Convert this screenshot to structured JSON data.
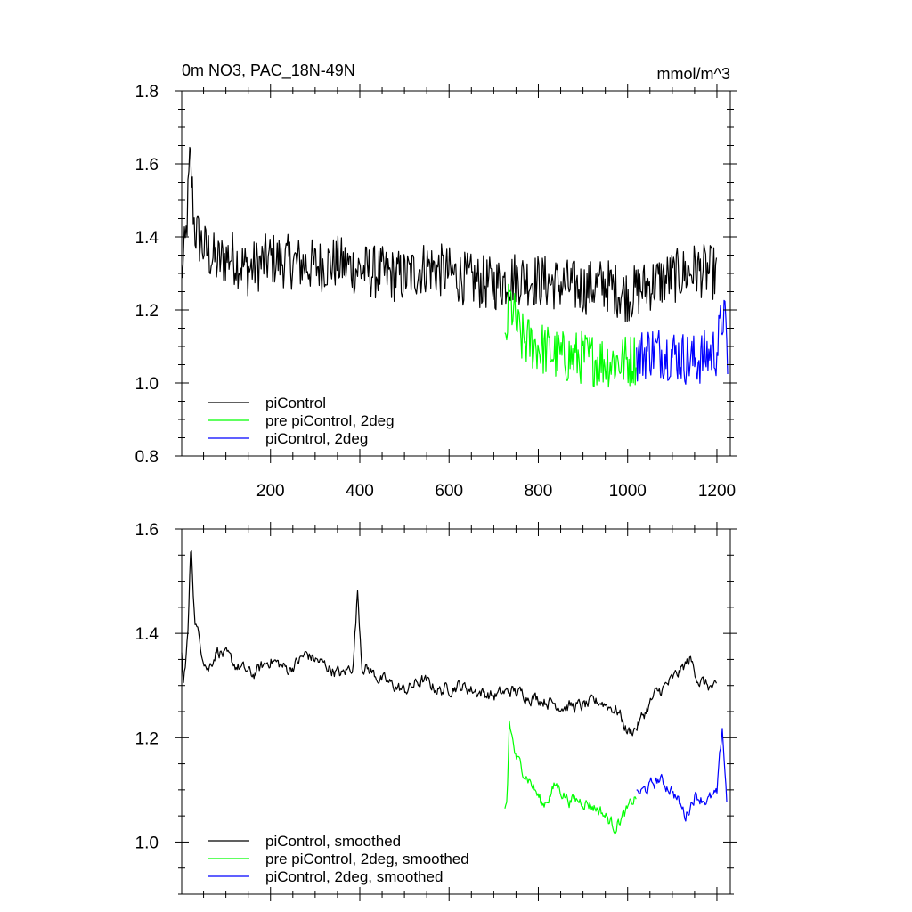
{
  "chart_data": [
    {
      "type": "line",
      "title_left": "0m NO3, PAC_18N-49N",
      "title_right": "mmol/m^3",
      "xlim": [
        1,
        1230
      ],
      "ylim": [
        0.8,
        1.8
      ],
      "xticks": [
        200,
        400,
        600,
        800,
        1000,
        1200
      ],
      "xtick_labels": [
        "200",
        "400",
        "600",
        "800",
        "1000",
        "1200"
      ],
      "yticks": [
        0.8,
        1.0,
        1.2,
        1.4,
        1.6,
        1.8
      ],
      "ytick_labels": [
        "0.8",
        "1.0",
        "1.2",
        "1.4",
        "1.6",
        "1.8"
      ],
      "legend_position": "lower-left",
      "series": [
        {
          "name": "piControl",
          "color": "#000000",
          "noise": 0.075,
          "points": [
            [
              1,
              1.3
            ],
            [
              10,
              1.38
            ],
            [
              20,
              1.62
            ],
            [
              30,
              1.42
            ],
            [
              50,
              1.37
            ],
            [
              80,
              1.33
            ],
            [
              110,
              1.35
            ],
            [
              150,
              1.31
            ],
            [
              200,
              1.34
            ],
            [
              250,
              1.33
            ],
            [
              300,
              1.32
            ],
            [
              350,
              1.33
            ],
            [
              400,
              1.31
            ],
            [
              450,
              1.3
            ],
            [
              500,
              1.29
            ],
            [
              550,
              1.32
            ],
            [
              600,
              1.3
            ],
            [
              650,
              1.28
            ],
            [
              700,
              1.27
            ],
            [
              750,
              1.29
            ],
            [
              800,
              1.28
            ],
            [
              850,
              1.27
            ],
            [
              900,
              1.26
            ],
            [
              950,
              1.27
            ],
            [
              1000,
              1.24
            ],
            [
              1050,
              1.27
            ],
            [
              1100,
              1.29
            ],
            [
              1150,
              1.31
            ],
            [
              1200,
              1.3
            ]
          ]
        },
        {
          "name": "pre piControl, 2deg",
          "color": "#00ff00",
          "noise": 0.075,
          "points": [
            [
              725,
              1.08
            ],
            [
              735,
              1.23
            ],
            [
              760,
              1.12
            ],
            [
              800,
              1.1
            ],
            [
              850,
              1.07
            ],
            [
              900,
              1.07
            ],
            [
              950,
              1.06
            ],
            [
              1000,
              1.06
            ],
            [
              1020,
              1.07
            ]
          ]
        },
        {
          "name": "piControl, 2deg",
          "color": "#0000ff",
          "noise": 0.075,
          "points": [
            [
              1020,
              1.07
            ],
            [
              1050,
              1.09
            ],
            [
              1100,
              1.08
            ],
            [
              1150,
              1.06
            ],
            [
              1200,
              1.09
            ],
            [
              1215,
              1.2
            ],
            [
              1225,
              1.05
            ]
          ]
        }
      ]
    },
    {
      "type": "line",
      "xlim": [
        1,
        1230
      ],
      "ylim": [
        0.9,
        1.6
      ],
      "xticks": [
        200,
        400,
        600,
        800,
        1000,
        1200
      ],
      "yticks": [
        1.0,
        1.2,
        1.4,
        1.6
      ],
      "ytick_labels": [
        "1.0",
        "1.2",
        "1.4",
        "1.6"
      ],
      "legend_position": "lower-left",
      "series": [
        {
          "name": "piControl, smoothed",
          "color": "#000000",
          "noise": 0.025,
          "points": [
            [
              1,
              1.36
            ],
            [
              5,
              1.3
            ],
            [
              15,
              1.4
            ],
            [
              22,
              1.58
            ],
            [
              30,
              1.43
            ],
            [
              45,
              1.37
            ],
            [
              60,
              1.33
            ],
            [
              80,
              1.37
            ],
            [
              120,
              1.34
            ],
            [
              160,
              1.32
            ],
            [
              200,
              1.35
            ],
            [
              240,
              1.33
            ],
            [
              280,
              1.36
            ],
            [
              320,
              1.34
            ],
            [
              360,
              1.32
            ],
            [
              385,
              1.34
            ],
            [
              395,
              1.48
            ],
            [
              405,
              1.34
            ],
            [
              450,
              1.31
            ],
            [
              500,
              1.29
            ],
            [
              540,
              1.31
            ],
            [
              580,
              1.29
            ],
            [
              620,
              1.3
            ],
            [
              660,
              1.29
            ],
            [
              700,
              1.28
            ],
            [
              740,
              1.29
            ],
            [
              780,
              1.28
            ],
            [
              820,
              1.27
            ],
            [
              860,
              1.26
            ],
            [
              900,
              1.26
            ],
            [
              940,
              1.27
            ],
            [
              980,
              1.25
            ],
            [
              1000,
              1.21
            ],
            [
              1020,
              1.22
            ],
            [
              1060,
              1.28
            ],
            [
              1100,
              1.31
            ],
            [
              1140,
              1.35
            ],
            [
              1160,
              1.31
            ],
            [
              1200,
              1.29
            ]
          ]
        },
        {
          "name": "pre piControl, 2deg, smoothed",
          "color": "#00ff00",
          "noise": 0.025,
          "points": [
            [
              725,
              1.06
            ],
            [
              730,
              1.08
            ],
            [
              735,
              1.23
            ],
            [
              750,
              1.16
            ],
            [
              780,
              1.12
            ],
            [
              810,
              1.07
            ],
            [
              840,
              1.11
            ],
            [
              870,
              1.08
            ],
            [
              900,
              1.08
            ],
            [
              940,
              1.06
            ],
            [
              970,
              1.03
            ],
            [
              1000,
              1.06
            ],
            [
              1020,
              1.09
            ]
          ]
        },
        {
          "name": "piControl, 2deg, smoothed",
          "color": "#0000ff",
          "noise": 0.025,
          "points": [
            [
              1020,
              1.09
            ],
            [
              1040,
              1.1
            ],
            [
              1070,
              1.12
            ],
            [
              1100,
              1.1
            ],
            [
              1130,
              1.05
            ],
            [
              1150,
              1.09
            ],
            [
              1180,
              1.08
            ],
            [
              1200,
              1.09
            ],
            [
              1212,
              1.22
            ],
            [
              1222,
              1.08
            ]
          ]
        }
      ]
    }
  ]
}
